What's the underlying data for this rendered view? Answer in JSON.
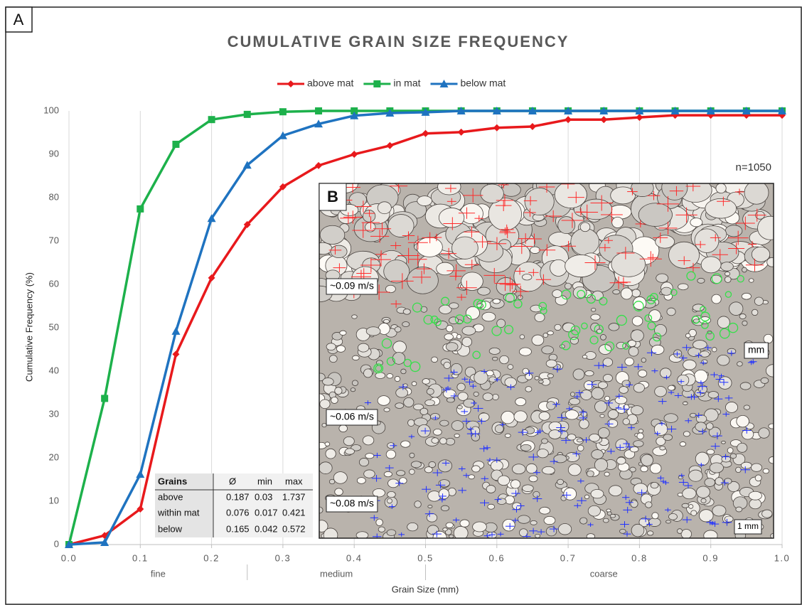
{
  "panel_label": "A",
  "chart_data": {
    "type": "line",
    "title": "CUMULATIVE GRAIN SIZE FREQUENCY",
    "x_label": "Grain Size (mm)",
    "y_label": "Cumulative Frequency (%)",
    "x": [
      0,
      0.05,
      0.1,
      0.15,
      0.2,
      0.25,
      0.3,
      0.35,
      0.4,
      0.45,
      0.5,
      0.55,
      0.6,
      0.65,
      0.7,
      0.75,
      0.8,
      0.85,
      0.9,
      0.95,
      1.0
    ],
    "series": [
      {
        "name": "above mat",
        "color": "#e8191c",
        "marker": "diamond",
        "values": [
          0,
          2.1,
          8.2,
          43.9,
          61.5,
          73.8,
          82.5,
          87.4,
          90,
          92,
          94.8,
          95.1,
          96.1,
          96.4,
          98,
          98,
          98.5,
          99,
          99,
          99,
          99
        ]
      },
      {
        "name": "in mat",
        "color": "#1db14b",
        "marker": "square",
        "values": [
          0,
          33.7,
          77.4,
          92.3,
          98,
          99.2,
          99.8,
          100,
          100,
          100,
          100,
          100,
          100,
          100,
          100,
          100,
          100,
          100,
          100,
          100,
          100
        ]
      },
      {
        "name": "below mat",
        "color": "#1f73c0",
        "marker": "triangle",
        "values": [
          0,
          0.5,
          16.2,
          49.2,
          75.2,
          87.5,
          94.3,
          97,
          98.9,
          99.5,
          99.7,
          100,
          100,
          100,
          100,
          100,
          100,
          100,
          100,
          100,
          100
        ]
      }
    ],
    "xlim": [
      0,
      1.0
    ],
    "xticks": [
      {
        "value": 0,
        "label": "0.0"
      },
      0.1,
      0.2,
      0.3,
      0.4,
      0.5,
      0.6,
      0.7,
      0.8,
      0.9,
      {
        "value": 1.0,
        "label": "1.0"
      }
    ],
    "ylim": [
      0,
      100
    ],
    "yticks": [
      0,
      10,
      20,
      30,
      40,
      50,
      60,
      70,
      80,
      90,
      100
    ],
    "grid": "x",
    "legend": "top",
    "size_classes": [
      {
        "label": "fine",
        "bounds": [
          0,
          0.25
        ]
      },
      {
        "label": "medium",
        "bounds": [
          0.25,
          0.5
        ]
      },
      {
        "label": "coarse",
        "bounds": [
          0.5,
          1.0
        ]
      }
    ],
    "annotation": "n=1050",
    "table": {
      "header": [
        "Grains",
        "Ø",
        "min",
        "max"
      ],
      "rows": [
        [
          "above",
          0.187,
          0.03,
          1.737
        ],
        [
          "within mat",
          0.076,
          0.017,
          0.421
        ],
        [
          "below",
          0.165,
          0.042,
          0.572
        ]
      ]
    },
    "inset": {
      "label": "B",
      "labels": [
        "~0.09 m/s",
        "mm",
        "~0.06 m/s",
        "~0.08 m/s"
      ],
      "scale_bar": "1 mm"
    }
  }
}
